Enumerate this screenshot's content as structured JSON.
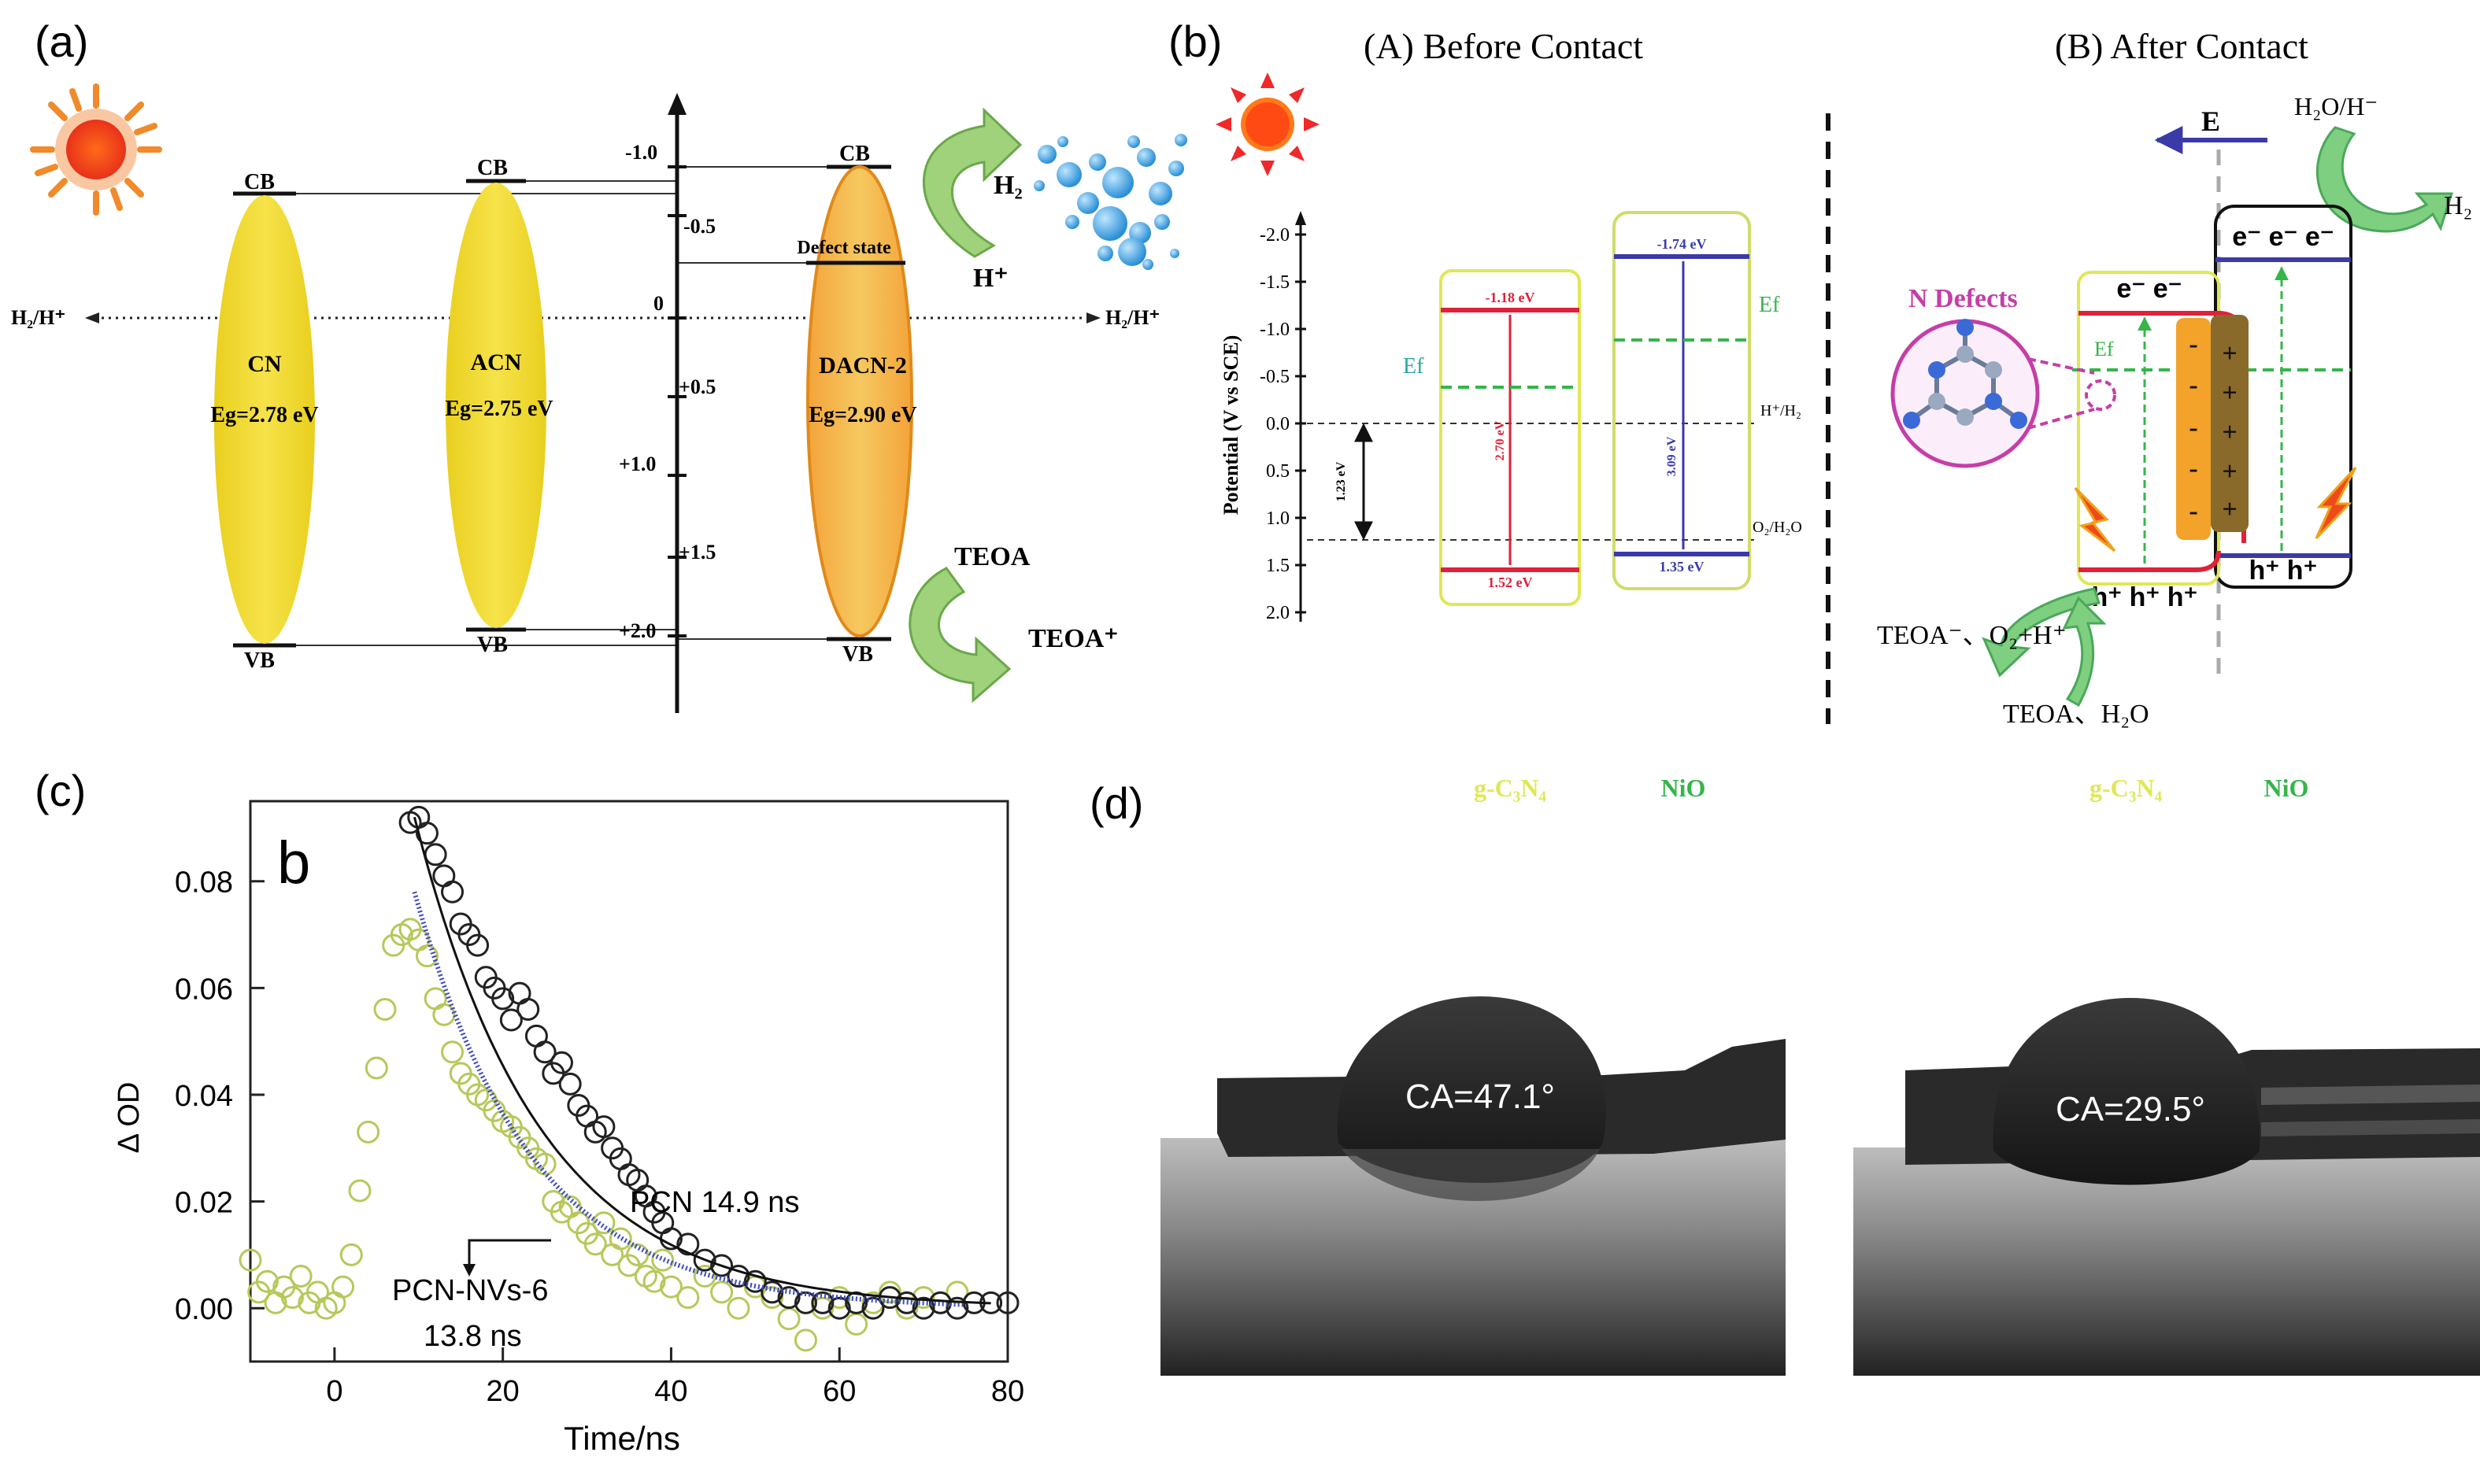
{
  "colors": {
    "cn_fill": "#f2dc3a",
    "dacn_fill": "#f4b942",
    "dacn_stroke": "#e08a1a",
    "arrow_green": "#9fd27a",
    "bubble_blue": "#4aa8e0",
    "red_band": "#e0213a",
    "blue_band": "#3a3aa8",
    "green_dash": "#35b54a",
    "yellow_box": "#dfe855",
    "magenta": "#c53ea8",
    "black_fit": "#111111",
    "blue_fit": "#3c4bc0",
    "scatter_green": "#c9d87a"
  },
  "panel_a": {
    "label": "(a)",
    "sun_icon": "sun-icon",
    "h2_ref_left": "H₂/H⁺",
    "h2_ref_right": "H₂/H⁺",
    "materials": [
      {
        "name": "CN",
        "eg": "Eg=2.78 eV",
        "cb": "CB",
        "vb": "VB"
      },
      {
        "name": "ACN",
        "eg": "Eg=2.75 eV",
        "cb": "CB",
        "vb": "VB"
      },
      {
        "name": "DACN-2",
        "eg": "Eg=2.90 eV",
        "cb": "CB",
        "vb": "VB"
      }
    ],
    "defect_state": "Defect state",
    "axis_ticks": [
      "-1.0",
      "-0.5",
      "0",
      "+0.5",
      "+1.0",
      "+1.5",
      "+2.0"
    ],
    "h2": "H₂",
    "h_plus": "H⁺",
    "teoa": "TEOA",
    "teoa_plus": "TEOA⁺"
  },
  "panel_b": {
    "label": "(b)",
    "title_before": "(A) Before Contact",
    "title_after": "(B) After Contact",
    "y_axis_label": "Potential (V vs SCE)",
    "y_ticks": [
      "-2.0",
      "-1.5",
      "-1.0",
      "-0.5",
      "0.0",
      "0.5",
      "1.0",
      "1.5",
      "2.0"
    ],
    "ref_h2": "H⁺/H₂",
    "ref_o2": "O₂/H₂O",
    "gap_123": "1.23 eV",
    "gcn_cb": "-1.18 eV",
    "gcn_vb": "1.52 eV",
    "gcn_gap": "2.70 eV",
    "nio_cb": "-1.74 eV",
    "nio_vb": "1.35 eV",
    "nio_gap": "3.09 eV",
    "ef": "Ef",
    "e_field": "E",
    "h2o_h": "H₂O/H⁻",
    "h2": "H₂",
    "n_defects": "N Defects",
    "electrons_gcn": "e⁻ e⁻",
    "electrons_nio": "e⁻ e⁻ e⁻",
    "holes_gcn": "h⁺ h⁺ h⁺",
    "holes_nio": "h⁺ h⁺",
    "teoa_out": "TEOA⁻、O₂+H⁺",
    "teoa_in": "TEOA、H₂O",
    "gcn_label_1": "g-C₃N₄",
    "nio_label_1": "NiO",
    "gcn_label_2": "g-C₃N₄",
    "nio_label_2": "NiO"
  },
  "panel_c": {
    "label": "(c)",
    "inner_label": "b",
    "ylabel": "Δ OD",
    "xlabel": "Time/ns",
    "pcn_label": "PCN  14.9 ns",
    "nvs_label_1": "PCN-NVs-6",
    "nvs_label_2": "13.8 ns"
  },
  "chart_data": {
    "type": "scatter",
    "xlabel": "Time/ns",
    "ylabel": "Δ OD",
    "xlim": [
      -10,
      80
    ],
    "ylim": [
      -0.01,
      0.095
    ],
    "x_ticks": [
      0,
      20,
      40,
      60,
      80
    ],
    "y_ticks": [
      0.0,
      0.02,
      0.04,
      0.06,
      0.08
    ],
    "series": [
      {
        "name": "PCN",
        "lifetime_ns": 14.9,
        "points": [
          [
            9,
            0.091
          ],
          [
            10,
            0.092
          ],
          [
            11,
            0.089
          ],
          [
            12,
            0.085
          ],
          [
            13,
            0.081
          ],
          [
            14,
            0.078
          ],
          [
            15,
            0.072
          ],
          [
            16,
            0.07
          ],
          [
            17,
            0.068
          ],
          [
            18,
            0.062
          ],
          [
            19,
            0.06
          ],
          [
            20,
            0.058
          ],
          [
            21,
            0.054
          ],
          [
            22,
            0.059
          ],
          [
            23,
            0.056
          ],
          [
            24,
            0.051
          ],
          [
            25,
            0.048
          ],
          [
            26,
            0.044
          ],
          [
            27,
            0.046
          ],
          [
            28,
            0.042
          ],
          [
            29,
            0.038
          ],
          [
            30,
            0.036
          ],
          [
            31,
            0.033
          ],
          [
            32,
            0.034
          ],
          [
            33,
            0.03
          ],
          [
            34,
            0.028
          ],
          [
            35,
            0.025
          ],
          [
            36,
            0.024
          ],
          [
            37,
            0.021
          ],
          [
            38,
            0.018
          ],
          [
            39,
            0.016
          ],
          [
            40,
            0.013
          ],
          [
            42,
            0.012
          ],
          [
            44,
            0.009
          ],
          [
            46,
            0.008
          ],
          [
            48,
            0.006
          ],
          [
            50,
            0.005
          ],
          [
            52,
            0.003
          ],
          [
            54,
            0.002
          ],
          [
            56,
            0.001
          ],
          [
            58,
            0.001
          ],
          [
            60,
            0.0
          ],
          [
            62,
            0.001
          ],
          [
            64,
            0.0
          ],
          [
            66,
            0.002
          ],
          [
            68,
            0.001
          ],
          [
            70,
            0.0
          ],
          [
            72,
            0.001
          ],
          [
            74,
            0.0
          ],
          [
            76,
            0.001
          ],
          [
            78,
            0.001
          ],
          [
            80,
            0.001
          ]
        ]
      },
      {
        "name": "PCN-NVs-6",
        "lifetime_ns": 13.8,
        "points": [
          [
            -10,
            0.009
          ],
          [
            -9,
            0.003
          ],
          [
            -8,
            0.005
          ],
          [
            -7,
            0.001
          ],
          [
            -6,
            0.004
          ],
          [
            -5,
            0.002
          ],
          [
            -4,
            0.006
          ],
          [
            -3,
            0.001
          ],
          [
            -2,
            0.003
          ],
          [
            -1,
            0.0
          ],
          [
            0,
            0.001
          ],
          [
            1,
            0.004
          ],
          [
            2,
            0.01
          ],
          [
            3,
            0.022
          ],
          [
            4,
            0.033
          ],
          [
            5,
            0.045
          ],
          [
            6,
            0.056
          ],
          [
            7,
            0.068
          ],
          [
            8,
            0.07
          ],
          [
            9,
            0.071
          ],
          [
            10,
            0.069
          ],
          [
            11,
            0.066
          ],
          [
            12,
            0.058
          ],
          [
            13,
            0.055
          ],
          [
            14,
            0.048
          ],
          [
            15,
            0.044
          ],
          [
            16,
            0.042
          ],
          [
            17,
            0.04
          ],
          [
            18,
            0.039
          ],
          [
            19,
            0.037
          ],
          [
            20,
            0.035
          ],
          [
            21,
            0.034
          ],
          [
            22,
            0.032
          ],
          [
            23,
            0.03
          ],
          [
            24,
            0.028
          ],
          [
            25,
            0.027
          ],
          [
            26,
            0.02
          ],
          [
            27,
            0.018
          ],
          [
            28,
            0.019
          ],
          [
            29,
            0.016
          ],
          [
            30,
            0.014
          ],
          [
            31,
            0.012
          ],
          [
            32,
            0.016
          ],
          [
            33,
            0.01
          ],
          [
            34,
            0.013
          ],
          [
            35,
            0.008
          ],
          [
            36,
            0.01
          ],
          [
            37,
            0.006
          ],
          [
            38,
            0.005
          ],
          [
            39,
            0.009
          ],
          [
            40,
            0.004
          ],
          [
            42,
            0.002
          ],
          [
            44,
            0.006
          ],
          [
            46,
            0.003
          ],
          [
            48,
            0.0
          ],
          [
            50,
            0.004
          ],
          [
            52,
            0.002
          ],
          [
            54,
            -0.002
          ],
          [
            56,
            -0.006
          ],
          [
            58,
            0.0
          ],
          [
            60,
            0.002
          ],
          [
            62,
            -0.003
          ],
          [
            64,
            0.001
          ],
          [
            66,
            0.003
          ],
          [
            68,
            0.0
          ],
          [
            70,
            0.002
          ],
          [
            72,
            0.001
          ],
          [
            74,
            0.003
          ]
        ]
      }
    ],
    "fits": [
      {
        "name": "PCN fit",
        "a": 0.092,
        "x0": 9.5,
        "tau": 14.9,
        "x_end": 78
      },
      {
        "name": "PCN-NVs-6 fit",
        "a": 0.078,
        "x0": 9.5,
        "tau": 13.8,
        "x_end": 75
      }
    ]
  },
  "panel_d": {
    "label": "(d)",
    "ca_left": "CA=47.1°",
    "ca_right": "CA=29.5°"
  }
}
